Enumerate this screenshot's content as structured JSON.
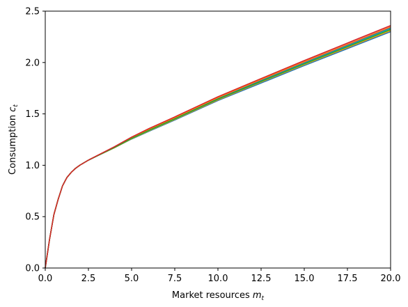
{
  "chart_data": {
    "type": "line",
    "title": "",
    "xlabel": "Market resources ",
    "xlabel_math": "m",
    "xlabel_sub": "t",
    "ylabel": "Consumption ",
    "ylabel_math": "c",
    "ylabel_sub": "t",
    "xlim": [
      0,
      20
    ],
    "ylim": [
      0,
      2.5
    ],
    "xticks": [
      0,
      2.5,
      5,
      7.5,
      10,
      12.5,
      15,
      17.5,
      20
    ],
    "xtick_labels": [
      "0.0",
      "2.5",
      "5.0",
      "7.5",
      "10.0",
      "12.5",
      "15.0",
      "17.5",
      "20.0"
    ],
    "yticks": [
      0,
      0.5,
      1.0,
      1.5,
      2.0,
      2.5
    ],
    "ytick_labels": [
      "0.0",
      "0.5",
      "1.0",
      "1.5",
      "2.0",
      "2.5"
    ],
    "grid": false,
    "legend": "none",
    "x": [
      0,
      0.25,
      0.5,
      0.75,
      1.0,
      1.25,
      1.5,
      1.75,
      2.0,
      2.5,
      3.0,
      4.0,
      5.0,
      6.0,
      7.5,
      10.0,
      12.5,
      15.0,
      17.5,
      20.0
    ],
    "series": [
      {
        "color": "#1f77b4",
        "values": [
          0,
          0.28,
          0.52,
          0.67,
          0.8,
          0.88,
          0.93,
          0.97,
          1.0,
          1.05,
          1.09,
          1.17,
          1.255,
          1.33,
          1.44,
          1.63,
          1.8,
          1.97,
          2.135,
          2.3
        ]
      },
      {
        "color": "#ff7f0e",
        "values": [
          0,
          0.28,
          0.52,
          0.67,
          0.8,
          0.88,
          0.93,
          0.97,
          1.0,
          1.05,
          1.09,
          1.17,
          1.258,
          1.335,
          1.446,
          1.637,
          1.81,
          1.98,
          2.145,
          2.31
        ]
      },
      {
        "color": "#2ca02c",
        "values": [
          0,
          0.28,
          0.52,
          0.67,
          0.8,
          0.88,
          0.93,
          0.97,
          1.0,
          1.05,
          1.09,
          1.172,
          1.26,
          1.338,
          1.45,
          1.642,
          1.815,
          1.985,
          2.152,
          2.32
        ]
      },
      {
        "color": "#d62728",
        "values": [
          0,
          0.28,
          0.52,
          0.67,
          0.8,
          0.88,
          0.93,
          0.97,
          1.0,
          1.05,
          1.092,
          1.175,
          1.265,
          1.345,
          1.457,
          1.65,
          1.825,
          1.997,
          2.165,
          2.335
        ]
      },
      {
        "color": "#9467bd",
        "values": [
          0,
          0.28,
          0.52,
          0.67,
          0.8,
          0.88,
          0.93,
          0.97,
          1.0,
          1.05,
          1.092,
          1.176,
          1.267,
          1.348,
          1.46,
          1.655,
          1.83,
          2.003,
          2.172,
          2.342
        ]
      },
      {
        "color": "#8c564b",
        "values": [
          0,
          0.28,
          0.52,
          0.67,
          0.8,
          0.88,
          0.93,
          0.97,
          1.0,
          1.05,
          1.093,
          1.178,
          1.27,
          1.352,
          1.465,
          1.66,
          1.837,
          2.01,
          2.18,
          2.35
        ]
      },
      {
        "color": "#e377c2",
        "values": [
          0,
          0.28,
          0.52,
          0.67,
          0.8,
          0.88,
          0.93,
          0.97,
          1.0,
          1.05,
          1.093,
          1.179,
          1.272,
          1.355,
          1.468,
          1.664,
          1.84,
          2.015,
          2.186,
          2.356
        ]
      },
      {
        "color": "#7f7f7f",
        "values": [
          0,
          0.28,
          0.52,
          0.67,
          0.8,
          0.88,
          0.93,
          0.97,
          1.0,
          1.05,
          1.091,
          1.173,
          1.262,
          1.34,
          1.452,
          1.645,
          1.818,
          1.99,
          2.158,
          2.325
        ]
      },
      {
        "color": "#bcbd22",
        "values": [
          0,
          0.28,
          0.52,
          0.67,
          0.8,
          0.88,
          0.93,
          0.97,
          1.0,
          1.05,
          1.091,
          1.171,
          1.259,
          1.336,
          1.448,
          1.64,
          1.812,
          1.982,
          2.15,
          2.315
        ]
      },
      {
        "color": "#17becf",
        "values": [
          0,
          0.28,
          0.52,
          0.67,
          0.8,
          0.88,
          0.93,
          0.97,
          1.0,
          1.05,
          1.092,
          1.174,
          1.263,
          1.342,
          1.455,
          1.647,
          1.82,
          1.993,
          2.16,
          2.328
        ]
      },
      {
        "color": "#1f77b4",
        "values": [
          0,
          0.28,
          0.52,
          0.67,
          0.8,
          0.88,
          0.93,
          0.97,
          1.0,
          1.05,
          1.092,
          1.175,
          1.266,
          1.346,
          1.458,
          1.652,
          1.827,
          2.0,
          2.168,
          2.338
        ]
      },
      {
        "color": "#ff7f0e",
        "values": [
          0,
          0.28,
          0.52,
          0.67,
          0.8,
          0.88,
          0.93,
          0.97,
          1.0,
          1.05,
          1.093,
          1.177,
          1.269,
          1.35,
          1.463,
          1.658,
          1.834,
          2.007,
          2.176,
          2.346
        ]
      },
      {
        "color": "#2ca02c",
        "values": [
          0,
          0.28,
          0.52,
          0.67,
          0.8,
          0.88,
          0.93,
          0.97,
          1.0,
          1.05,
          1.091,
          1.172,
          1.261,
          1.339,
          1.451,
          1.643,
          1.816,
          1.987,
          2.154,
          2.322
        ]
      },
      {
        "color": "#d62728",
        "values": [
          0,
          0.28,
          0.52,
          0.67,
          0.8,
          0.88,
          0.93,
          0.97,
          1.0,
          1.05,
          1.094,
          1.18,
          1.274,
          1.357,
          1.471,
          1.667,
          1.844,
          2.019,
          2.19,
          2.36
        ]
      }
    ]
  }
}
